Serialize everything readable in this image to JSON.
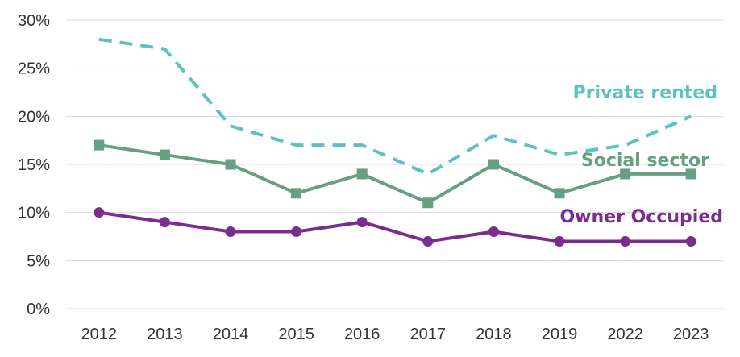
{
  "chart_data": {
    "type": "line",
    "title": "",
    "xlabel": "",
    "ylabel": "",
    "x": [
      "2012",
      "2013",
      "2014",
      "2015",
      "2016",
      "2017",
      "2018",
      "2019",
      "2022",
      "2023"
    ],
    "ylim": [
      0,
      30
    ],
    "yticks": [
      0,
      5,
      10,
      15,
      20,
      25,
      30
    ],
    "ytick_labels": [
      "0%",
      "5%",
      "10%",
      "15%",
      "20%",
      "25%",
      "30%"
    ],
    "grid": "horizontal",
    "legend": "none (direct labels next to lines)",
    "series": [
      {
        "name": "Private rented",
        "values": [
          28,
          27,
          19,
          17,
          17,
          14,
          18,
          16,
          17,
          20
        ],
        "color": "#5bc2c0",
        "line_style": "dashed",
        "marker": "none"
      },
      {
        "name": "Social sector",
        "values": [
          17,
          16,
          15,
          12,
          14,
          11,
          15,
          12,
          14,
          14
        ],
        "color": "#66a082",
        "line_style": "solid",
        "marker": "square"
      },
      {
        "name": "Owner Occupied",
        "values": [
          10,
          9,
          8,
          8,
          9,
          7,
          8,
          7,
          7,
          7
        ],
        "color": "#7b2d8e",
        "line_style": "solid",
        "marker": "circle"
      }
    ]
  }
}
